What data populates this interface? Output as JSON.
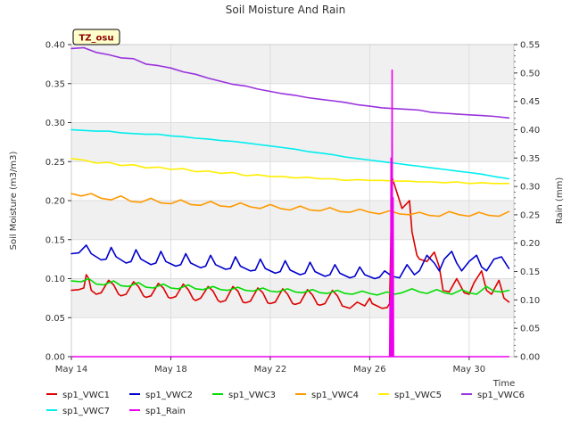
{
  "chart_data": {
    "type": "line",
    "title": "Soil Moisture And Rain",
    "xlabel": "Time",
    "ylabel": "Soil Moisture (m3/m3)",
    "y2label": "Rain (mm)",
    "site_label": "TZ_osu",
    "x_start_day": 14,
    "x_end_day": 31.8,
    "xlim": [
      14,
      31.8
    ],
    "ylim": [
      0.0,
      0.4
    ],
    "y2lim": [
      0.0,
      0.55
    ],
    "x_ticks": [
      {
        "value": 14,
        "label": "May 14"
      },
      {
        "value": 18,
        "label": "May 18"
      },
      {
        "value": 22,
        "label": "May 22"
      },
      {
        "value": 26,
        "label": "May 26"
      },
      {
        "value": 30,
        "label": "May 30"
      }
    ],
    "y_ticks": [
      {
        "value": 0.0,
        "label": "0.00"
      },
      {
        "value": 0.05,
        "label": "0.05"
      },
      {
        "value": 0.1,
        "label": "0.10"
      },
      {
        "value": 0.15,
        "label": "0.15"
      },
      {
        "value": 0.2,
        "label": "0.20"
      },
      {
        "value": 0.25,
        "label": "0.25"
      },
      {
        "value": 0.3,
        "label": "0.30"
      },
      {
        "value": 0.35,
        "label": "0.35"
      },
      {
        "value": 0.4,
        "label": "0.40"
      }
    ],
    "y2_ticks": [
      {
        "value": 0.0,
        "label": "0.00"
      },
      {
        "value": 0.05,
        "label": "0.05"
      },
      {
        "value": 0.1,
        "label": "0.10"
      },
      {
        "value": 0.15,
        "label": "0.15"
      },
      {
        "value": 0.2,
        "label": "0.20"
      },
      {
        "value": 0.25,
        "label": "0.25"
      },
      {
        "value": 0.3,
        "label": "0.30"
      },
      {
        "value": 0.35,
        "label": "0.35"
      },
      {
        "value": 0.4,
        "label": "0.40"
      },
      {
        "value": 0.45,
        "label": "0.45"
      },
      {
        "value": 0.5,
        "label": "0.50"
      },
      {
        "value": 0.55,
        "label": "0.55"
      }
    ],
    "series": [
      {
        "name": "sp1_VWC1",
        "color": "#dd0000",
        "axis": "left",
        "x": [
          14.0,
          14.3,
          14.5,
          14.6,
          14.7,
          14.8,
          15.0,
          15.2,
          15.5,
          15.7,
          15.9,
          16.0,
          16.2,
          16.5,
          16.7,
          16.9,
          17.0,
          17.2,
          17.5,
          17.7,
          17.9,
          18.0,
          18.2,
          18.5,
          18.7,
          18.9,
          19.0,
          19.2,
          19.5,
          19.7,
          19.9,
          20.0,
          20.2,
          20.5,
          20.7,
          20.9,
          21.0,
          21.2,
          21.5,
          21.7,
          21.9,
          22.0,
          22.2,
          22.5,
          22.7,
          22.9,
          23.0,
          23.2,
          23.5,
          23.7,
          23.9,
          24.0,
          24.2,
          24.5,
          24.7,
          24.9,
          25.0,
          25.2,
          25.5,
          25.8,
          26.0,
          26.1,
          26.3,
          26.5,
          26.7,
          26.8,
          26.9,
          27.0,
          27.3,
          27.6,
          27.7,
          27.9,
          28.0,
          28.3,
          28.6,
          28.8,
          28.95,
          29.2,
          29.5,
          29.8,
          30.0,
          30.2,
          30.5,
          30.7,
          30.9,
          31.2,
          31.4,
          31.6
        ],
        "values": [
          0.085,
          0.086,
          0.088,
          0.105,
          0.1,
          0.085,
          0.08,
          0.082,
          0.098,
          0.092,
          0.08,
          0.078,
          0.08,
          0.096,
          0.09,
          0.078,
          0.076,
          0.078,
          0.094,
          0.088,
          0.076,
          0.075,
          0.077,
          0.093,
          0.086,
          0.074,
          0.072,
          0.075,
          0.09,
          0.084,
          0.072,
          0.07,
          0.072,
          0.09,
          0.084,
          0.07,
          0.069,
          0.071,
          0.088,
          0.082,
          0.069,
          0.068,
          0.07,
          0.087,
          0.08,
          0.068,
          0.067,
          0.069,
          0.086,
          0.079,
          0.067,
          0.066,
          0.068,
          0.085,
          0.078,
          0.065,
          0.064,
          0.062,
          0.07,
          0.065,
          0.075,
          0.068,
          0.065,
          0.062,
          0.063,
          0.068,
          0.23,
          0.22,
          0.19,
          0.2,
          0.16,
          0.13,
          0.125,
          0.122,
          0.134,
          0.115,
          0.085,
          0.083,
          0.1,
          0.082,
          0.08,
          0.095,
          0.11,
          0.085,
          0.08,
          0.098,
          0.075,
          0.07
        ]
      },
      {
        "name": "sp1_VWC2",
        "color": "#0000cc",
        "axis": "left",
        "x": [
          14.0,
          14.3,
          14.6,
          14.8,
          15.2,
          15.4,
          15.6,
          15.8,
          16.2,
          16.4,
          16.6,
          16.8,
          17.2,
          17.4,
          17.6,
          17.8,
          18.2,
          18.4,
          18.6,
          18.8,
          19.2,
          19.4,
          19.6,
          19.8,
          20.2,
          20.4,
          20.6,
          20.8,
          21.2,
          21.4,
          21.6,
          21.8,
          22.2,
          22.4,
          22.6,
          22.8,
          23.2,
          23.4,
          23.6,
          23.8,
          24.2,
          24.4,
          24.6,
          24.8,
          25.2,
          25.4,
          25.6,
          25.8,
          26.2,
          26.4,
          26.6,
          26.9,
          27.2,
          27.5,
          27.8,
          28.0,
          28.3,
          28.6,
          28.8,
          29.0,
          29.3,
          29.5,
          29.7,
          30.0,
          30.3,
          30.5,
          30.7,
          31.0,
          31.3,
          31.6
        ],
        "values": [
          0.132,
          0.133,
          0.143,
          0.132,
          0.124,
          0.125,
          0.14,
          0.128,
          0.12,
          0.122,
          0.137,
          0.125,
          0.118,
          0.12,
          0.135,
          0.122,
          0.116,
          0.118,
          0.132,
          0.12,
          0.114,
          0.116,
          0.13,
          0.118,
          0.112,
          0.113,
          0.128,
          0.116,
          0.11,
          0.111,
          0.125,
          0.113,
          0.107,
          0.109,
          0.123,
          0.111,
          0.105,
          0.107,
          0.121,
          0.109,
          0.103,
          0.105,
          0.118,
          0.107,
          0.101,
          0.103,
          0.115,
          0.105,
          0.1,
          0.102,
          0.11,
          0.103,
          0.101,
          0.118,
          0.105,
          0.11,
          0.13,
          0.12,
          0.11,
          0.125,
          0.135,
          0.12,
          0.11,
          0.122,
          0.13,
          0.115,
          0.11,
          0.125,
          0.128,
          0.113
        ]
      },
      {
        "name": "sp1_VWC3",
        "color": "#00dd00",
        "axis": "left",
        "x": [
          14.0,
          14.4,
          14.7,
          15.0,
          15.3,
          15.7,
          16.0,
          16.3,
          16.7,
          17.0,
          17.3,
          17.7,
          18.0,
          18.3,
          18.7,
          19.0,
          19.3,
          19.7,
          20.0,
          20.3,
          20.7,
          21.0,
          21.3,
          21.7,
          22.0,
          22.3,
          22.7,
          23.0,
          23.3,
          23.7,
          24.0,
          24.3,
          24.7,
          25.0,
          25.3,
          25.7,
          26.0,
          26.3,
          26.7,
          27.0,
          27.3,
          27.7,
          28.0,
          28.3,
          28.7,
          29.0,
          29.3,
          29.7,
          30.0,
          30.3,
          30.7,
          31.0,
          31.3,
          31.6
        ],
        "values": [
          0.097,
          0.096,
          0.1,
          0.093,
          0.092,
          0.097,
          0.091,
          0.09,
          0.095,
          0.089,
          0.088,
          0.093,
          0.088,
          0.087,
          0.092,
          0.087,
          0.086,
          0.09,
          0.086,
          0.085,
          0.089,
          0.085,
          0.084,
          0.088,
          0.084,
          0.083,
          0.087,
          0.083,
          0.082,
          0.086,
          0.082,
          0.081,
          0.085,
          0.081,
          0.08,
          0.084,
          0.081,
          0.079,
          0.083,
          0.08,
          0.082,
          0.087,
          0.083,
          0.081,
          0.086,
          0.082,
          0.08,
          0.086,
          0.082,
          0.08,
          0.09,
          0.084,
          0.083,
          0.085
        ]
      },
      {
        "name": "sp1_VWC4",
        "color": "#ff9900",
        "axis": "left",
        "x": [
          14.0,
          14.4,
          14.8,
          15.2,
          15.6,
          16.0,
          16.4,
          16.8,
          17.2,
          17.6,
          18.0,
          18.4,
          18.8,
          19.2,
          19.6,
          20.0,
          20.4,
          20.8,
          21.2,
          21.6,
          22.0,
          22.4,
          22.8,
          23.2,
          23.6,
          24.0,
          24.4,
          24.8,
          25.2,
          25.6,
          26.0,
          26.4,
          26.8,
          27.2,
          27.6,
          28.0,
          28.4,
          28.8,
          29.2,
          29.6,
          30.0,
          30.4,
          30.8,
          31.2,
          31.6
        ],
        "values": [
          0.209,
          0.206,
          0.209,
          0.203,
          0.201,
          0.206,
          0.199,
          0.198,
          0.203,
          0.197,
          0.196,
          0.201,
          0.195,
          0.194,
          0.199,
          0.193,
          0.192,
          0.197,
          0.192,
          0.19,
          0.195,
          0.19,
          0.188,
          0.193,
          0.188,
          0.187,
          0.191,
          0.186,
          0.185,
          0.189,
          0.185,
          0.183,
          0.187,
          0.183,
          0.182,
          0.185,
          0.181,
          0.18,
          0.186,
          0.182,
          0.18,
          0.185,
          0.181,
          0.18,
          0.186
        ]
      },
      {
        "name": "sp1_VWC5",
        "color": "#ffee00",
        "axis": "left",
        "x": [
          14.0,
          14.5,
          15.0,
          15.5,
          16.0,
          16.5,
          17.0,
          17.5,
          18.0,
          18.5,
          19.0,
          19.5,
          20.0,
          20.5,
          21.0,
          21.5,
          22.0,
          22.5,
          23.0,
          23.5,
          24.0,
          24.5,
          25.0,
          25.5,
          26.0,
          26.5,
          27.0,
          27.5,
          28.0,
          28.5,
          29.0,
          29.5,
          30.0,
          30.5,
          31.0,
          31.6
        ],
        "values": [
          0.254,
          0.252,
          0.248,
          0.249,
          0.245,
          0.246,
          0.242,
          0.243,
          0.24,
          0.241,
          0.237,
          0.238,
          0.235,
          0.236,
          0.232,
          0.233,
          0.231,
          0.231,
          0.229,
          0.23,
          0.228,
          0.228,
          0.226,
          0.227,
          0.226,
          0.226,
          0.225,
          0.225,
          0.224,
          0.224,
          0.223,
          0.224,
          0.222,
          0.223,
          0.222,
          0.222
        ]
      },
      {
        "name": "sp1_VWC6",
        "color": "#9933dd",
        "axis": "left",
        "x": [
          14.0,
          14.5,
          15.0,
          15.5,
          16.0,
          16.5,
          17.0,
          17.5,
          18.0,
          18.5,
          19.0,
          19.5,
          20.0,
          20.5,
          21.0,
          21.5,
          22.0,
          22.5,
          23.0,
          23.5,
          24.0,
          24.5,
          25.0,
          25.5,
          26.0,
          26.5,
          27.0,
          27.5,
          28.0,
          28.5,
          29.0,
          29.5,
          30.0,
          30.5,
          31.0,
          31.6
        ],
        "values": [
          0.395,
          0.396,
          0.39,
          0.387,
          0.383,
          0.382,
          0.375,
          0.373,
          0.37,
          0.365,
          0.362,
          0.357,
          0.353,
          0.349,
          0.347,
          0.343,
          0.34,
          0.337,
          0.335,
          0.332,
          0.33,
          0.328,
          0.326,
          0.323,
          0.321,
          0.319,
          0.318,
          0.317,
          0.316,
          0.313,
          0.312,
          0.311,
          0.31,
          0.309,
          0.308,
          0.306
        ]
      },
      {
        "name": "sp1_VWC7",
        "color": "#00eeee",
        "axis": "left",
        "x": [
          14.0,
          14.5,
          15.0,
          15.5,
          16.0,
          16.5,
          17.0,
          17.5,
          18.0,
          18.5,
          19.0,
          19.5,
          20.0,
          20.5,
          21.0,
          21.5,
          22.0,
          22.5,
          23.0,
          23.5,
          24.0,
          24.5,
          25.0,
          25.5,
          26.0,
          26.5,
          27.0,
          27.5,
          28.0,
          28.5,
          29.0,
          29.5,
          30.0,
          30.5,
          31.0,
          31.6
        ],
        "values": [
          0.291,
          0.29,
          0.289,
          0.289,
          0.287,
          0.286,
          0.285,
          0.285,
          0.283,
          0.282,
          0.28,
          0.279,
          0.277,
          0.276,
          0.274,
          0.272,
          0.27,
          0.268,
          0.266,
          0.263,
          0.261,
          0.259,
          0.256,
          0.254,
          0.252,
          0.25,
          0.248,
          0.246,
          0.244,
          0.242,
          0.24,
          0.238,
          0.236,
          0.234,
          0.231,
          0.228
        ]
      },
      {
        "name": "sp1_Rain",
        "color": "#ee00ee",
        "axis": "right",
        "x": [
          14.0,
          26.8,
          26.82,
          26.84,
          26.86,
          26.88,
          26.9,
          26.92,
          26.94,
          26.96,
          26.98,
          31.6
        ],
        "values": [
          0.0,
          0.0,
          0.1,
          0.0,
          0.35,
          0.0,
          0.505,
          0.0,
          0.28,
          0.0,
          0.0,
          0.0
        ]
      }
    ]
  }
}
